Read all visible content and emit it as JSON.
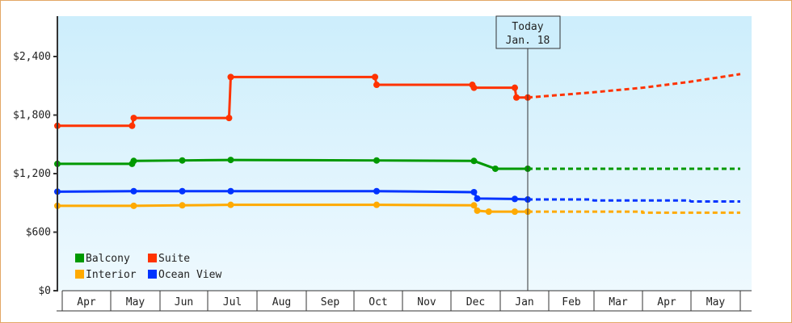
{
  "chart_data": {
    "type": "line",
    "title": "",
    "xlabel": "",
    "ylabel": "",
    "ylim": [
      0,
      2800
    ],
    "y_ticks": [
      {
        "value": 0,
        "label": "$0"
      },
      {
        "value": 600,
        "label": "$600"
      },
      {
        "value": 1200,
        "label": "$1,200"
      },
      {
        "value": 1800,
        "label": "$1,800"
      },
      {
        "value": 2400,
        "label": "$2,400"
      }
    ],
    "x_months": [
      "Apr",
      "May",
      "Jun",
      "Jul",
      "Aug",
      "Sep",
      "Oct",
      "Nov",
      "Dec",
      "Jan",
      "Feb",
      "Mar",
      "Apr",
      "May"
    ],
    "today_marker": {
      "line1": "Today",
      "line2": "Jan. 18"
    },
    "legend_position": "bottom-left inside plot",
    "grid": false,
    "series": [
      {
        "name": "Balcony",
        "color": "#009900",
        "historical": [
          {
            "date": "Apr 1",
            "value": 1300
          },
          {
            "date": "May 14",
            "value": 1300
          },
          {
            "date": "May 15",
            "value": 1330
          },
          {
            "date": "Jun 15",
            "value": 1335
          },
          {
            "date": "Jul 15",
            "value": 1340
          },
          {
            "date": "Oct 15",
            "value": 1335
          },
          {
            "date": "Dec 15",
            "value": 1330
          },
          {
            "date": "Dec 28",
            "value": 1250
          },
          {
            "date": "Jan 18",
            "value": 1250
          }
        ],
        "forecast": [
          {
            "date": "Jan 18",
            "value": 1250
          },
          {
            "date": "May 31",
            "value": 1250
          }
        ]
      },
      {
        "name": "Suite",
        "color": "#ff3300",
        "historical": [
          {
            "date": "Apr 1",
            "value": 1690
          },
          {
            "date": "May 14",
            "value": 1690
          },
          {
            "date": "May 15",
            "value": 1770
          },
          {
            "date": "Jul 14",
            "value": 1770
          },
          {
            "date": "Jul 15",
            "value": 2190
          },
          {
            "date": "Oct 14",
            "value": 2190
          },
          {
            "date": "Oct 15",
            "value": 2110
          },
          {
            "date": "Dec 14",
            "value": 2110
          },
          {
            "date": "Dec 15",
            "value": 2080
          },
          {
            "date": "Jan 10",
            "value": 2080
          },
          {
            "date": "Jan 11",
            "value": 1980
          },
          {
            "date": "Jan 18",
            "value": 1980
          }
        ],
        "forecast": [
          {
            "date": "Jan 18",
            "value": 1980
          },
          {
            "date": "Feb 28",
            "value": 2030
          },
          {
            "date": "Mar 31",
            "value": 2080
          },
          {
            "date": "Apr 30",
            "value": 2140
          },
          {
            "date": "May 31",
            "value": 2220
          }
        ]
      },
      {
        "name": "Interior",
        "color": "#ffaa00",
        "historical": [
          {
            "date": "Apr 1",
            "value": 870
          },
          {
            "date": "May 15",
            "value": 870
          },
          {
            "date": "Jun 15",
            "value": 875
          },
          {
            "date": "Jul 15",
            "value": 880
          },
          {
            "date": "Oct 15",
            "value": 880
          },
          {
            "date": "Dec 15",
            "value": 875
          },
          {
            "date": "Dec 17",
            "value": 820
          },
          {
            "date": "Dec 24",
            "value": 810
          },
          {
            "date": "Jan 10",
            "value": 810
          },
          {
            "date": "Jan 18",
            "value": 810
          }
        ],
        "forecast": [
          {
            "date": "Jan 18",
            "value": 810
          },
          {
            "date": "Mar 31",
            "value": 810
          },
          {
            "date": "Apr 1",
            "value": 800
          },
          {
            "date": "May 31",
            "value": 800
          }
        ]
      },
      {
        "name": "Ocean View",
        "color": "#0033ff",
        "historical": [
          {
            "date": "Apr 1",
            "value": 1015
          },
          {
            "date": "May 15",
            "value": 1020
          },
          {
            "date": "Jun 15",
            "value": 1020
          },
          {
            "date": "Jul 15",
            "value": 1020
          },
          {
            "date": "Oct 15",
            "value": 1020
          },
          {
            "date": "Dec 15",
            "value": 1010
          },
          {
            "date": "Dec 17",
            "value": 945
          },
          {
            "date": "Jan 10",
            "value": 940
          },
          {
            "date": "Jan 18",
            "value": 935
          }
        ],
        "forecast": [
          {
            "date": "Jan 18",
            "value": 935
          },
          {
            "date": "Feb 28",
            "value": 935
          },
          {
            "date": "Mar 1",
            "value": 925
          },
          {
            "date": "Apr 30",
            "value": 925
          },
          {
            "date": "May 1",
            "value": 915
          },
          {
            "date": "May 31",
            "value": 915
          }
        ]
      }
    ]
  },
  "legend": [
    {
      "label": "Balcony",
      "color": "#009900"
    },
    {
      "label": "Suite",
      "color": "#ff3300"
    },
    {
      "label": "Interior",
      "color": "#ffaa00"
    },
    {
      "label": "Ocean View",
      "color": "#0033ff"
    }
  ]
}
